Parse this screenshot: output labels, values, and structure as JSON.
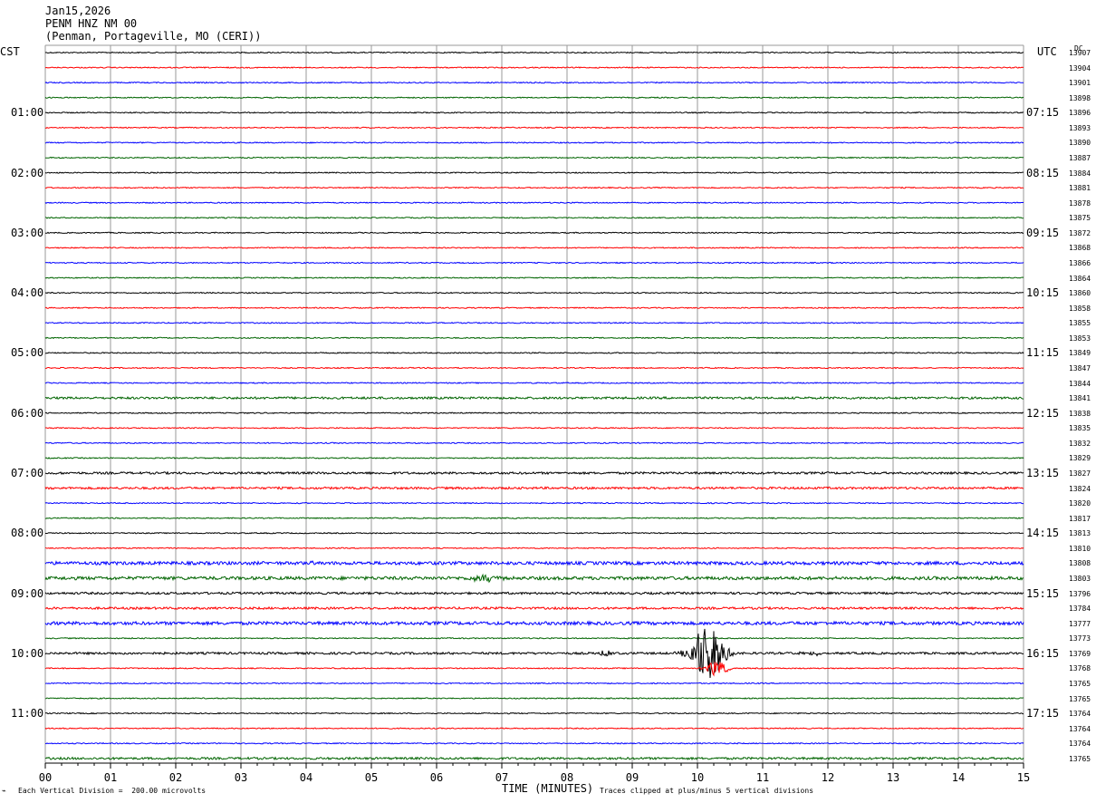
{
  "header": {
    "date": "Jan15,2026",
    "station": "PENM HNZ NM 00",
    "location": "(Penman, Portageville, MO (CERI))"
  },
  "chart_data": {
    "type": "line",
    "title": "PENM HNZ NM 00",
    "left_tz_label": "CST",
    "right_tz_label": "UTC",
    "dc_header": "DC",
    "xlabel": "TIME (MINUTES)",
    "x_ticks": [
      "00",
      "01",
      "02",
      "03",
      "04",
      "05",
      "06",
      "07",
      "08",
      "09",
      "10",
      "11",
      "12",
      "13",
      "14",
      "15"
    ],
    "xlim": [
      0,
      15
    ],
    "row_minutes": 15,
    "trace_colors": [
      "#000000",
      "#ff0000",
      "#0000ff",
      "#006400"
    ],
    "hour_labels_cst": [
      "01:00",
      "02:00",
      "03:00",
      "04:00",
      "05:00",
      "06:00",
      "07:00",
      "08:00",
      "09:00",
      "10:00",
      "11:00"
    ],
    "hour_labels_utc": [
      "07:15",
      "08:15",
      "09:15",
      "10:15",
      "11:15",
      "12:15",
      "13:15",
      "14:15",
      "15:15",
      "16:15",
      "17:15"
    ],
    "dc_offsets": [
      "13907",
      "13904",
      "13901",
      "13898",
      "13896",
      "13893",
      "13890",
      "13887",
      "13884",
      "13881",
      "13878",
      "13875",
      "13872",
      "13868",
      "13866",
      "13864",
      "13860",
      "13858",
      "13855",
      "13853",
      "13849",
      "13847",
      "13844",
      "13841",
      "13838",
      "13835",
      "13832",
      "13829",
      "13827",
      "13824",
      "13820",
      "13817",
      "13813",
      "13810",
      "13808",
      "13803",
      "13796",
      "13784",
      "13777",
      "13773",
      "13769",
      "13768",
      "13765",
      "13765",
      "13764",
      "13764",
      "13764",
      "13765"
    ],
    "noise_level": [
      1,
      1,
      1,
      1,
      1,
      1,
      1,
      1,
      1,
      1,
      1,
      1,
      1,
      1,
      1,
      1,
      1,
      1,
      1,
      1,
      1,
      1,
      1,
      2,
      1,
      1,
      1,
      1,
      2,
      2,
      1,
      1,
      1,
      1,
      3,
      3,
      2,
      2,
      3,
      1,
      2,
      1,
      1,
      1,
      1,
      1,
      1,
      2
    ],
    "events": [
      {
        "row": 40,
        "minute": 10.15,
        "duration_min": 0.5,
        "amplitude_div": 5,
        "clipped": true
      },
      {
        "row": 40,
        "minute": 8.6,
        "duration_min": 0.2,
        "amplitude_div": 0.6,
        "clipped": false
      },
      {
        "row": 40,
        "minute": 11.8,
        "duration_min": 0.4,
        "amplitude_div": 0.4,
        "clipped": false
      },
      {
        "row": 35,
        "minute": 6.75,
        "duration_min": 0.4,
        "amplitude_div": 0.7,
        "clipped": false
      },
      {
        "row": 34,
        "minute": 4.1,
        "duration_min": 0.1,
        "amplitude_div": 0.6,
        "clipped": false
      },
      {
        "row": 41,
        "minute": 10.3,
        "duration_min": 0.3,
        "amplitude_div": 1.5,
        "clipped": false
      }
    ]
  },
  "footer": {
    "scale_note": "Each Vertical Division =  200.00 microvolts",
    "clip_note": "Traces clipped at plus/minus 5 vertical divisions"
  }
}
